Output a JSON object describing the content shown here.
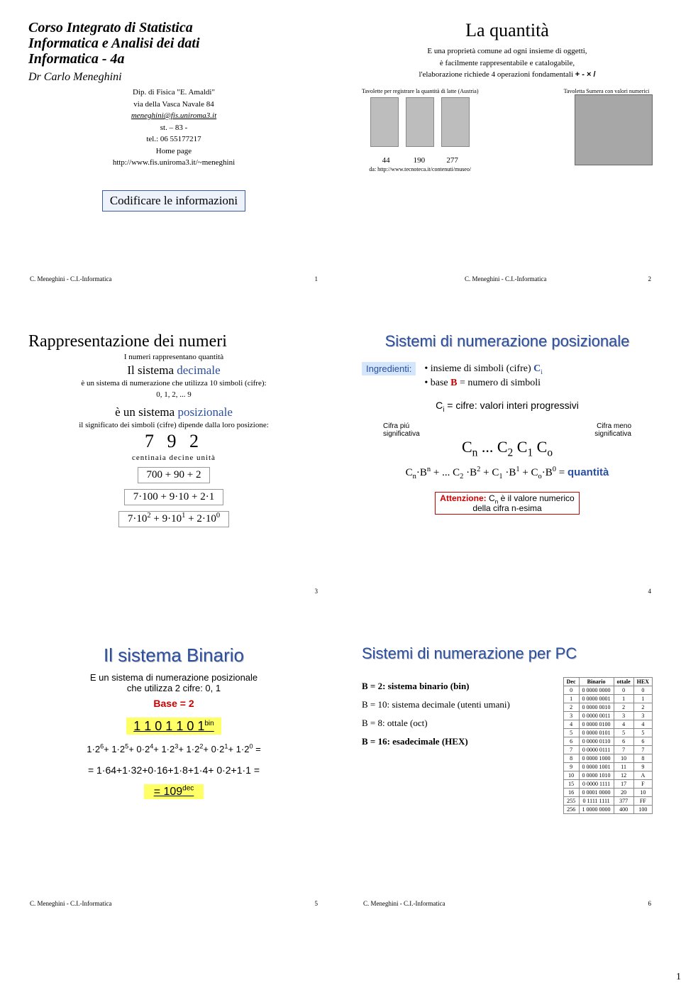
{
  "page_number": "1",
  "slide1": {
    "title_l1": "Corso Integrato di Statistica",
    "title_l2": "Informatica e Analisi dei dati",
    "title_l3": "Informatica - 4a",
    "author": "Dr Carlo Meneghini",
    "dept": "Dip. di Fisica \"E. Amaldi\"",
    "addr": "via della Vasca Navale 84",
    "email": "meneghini@fis.uniroma3.it",
    "room": "st. – 83 -",
    "tel": "tel.: 06 55177217",
    "home_label": "Home page",
    "home_url": "http://www.fis.uniroma3.it/~meneghini",
    "box": "Codificare le informazioni",
    "footer": "C. Meneghini - C.I.-Informatica",
    "num": "1"
  },
  "slide2": {
    "title": "La quantità",
    "line1": "E una proprietà comune ad ogni insieme di oggetti,",
    "line2": "è facilmente rappresentabile e catalogabile,",
    "line3_a": "l'elaborazione richiede 4 operazioni fondamentali ",
    "line3_ops": "+ - × /",
    "cap_left": "Tavolette per registrare la quantità di latte (Austria)",
    "cap_right": "Tavoletta Sumera con valori numerici",
    "nums": "44            190           277",
    "src": "da: http://www.tecnoteca.it/contenuti/museo/",
    "footer": "C. Meneghini - C.I.-Informatica",
    "num": "2"
  },
  "slide3": {
    "title": "Rappresentazione dei numeri",
    "sub1": "I numeri rappresentano quantità",
    "sub2a": "Il sistema ",
    "sub2b": "decimale",
    "line1": "è un sistema di numerazione che utilizza 10 simboli (cifre):",
    "line2": "0, 1, 2, ... 9",
    "sub3a": "è un sistema ",
    "sub3b": "posizionale",
    "line3": "il significato dei simboli (cifre) dipende dalla loro posizione:",
    "digits": "7 9 2",
    "labels": "centinaia  decine  unità",
    "eq1": "700 + 90 + 2",
    "eq2": "7·100 + 9·10 + 2·1",
    "eq3_html": "7·10<sup>2</sup> + 9·10<sup>1</sup> + 2·10<sup>0</sup>",
    "num": "3"
  },
  "slide4": {
    "title": "Sistemi di numerazione posizionale",
    "ingred_label": "Ingredienti:",
    "ing1": "• insieme di simboli  (cifre)  ",
    "ing1_c": "C",
    "ing1_i": "i",
    "ing2a": "• base ",
    "ing2b": "B",
    "ing2c": " = numero di simboli",
    "ci_line": "C<sub>i</sub> = cifre: valori interi progressivi",
    "lbl_left": "Cifra piú\nsignificativa",
    "lbl_right": "Cifra meno\nsignificativa",
    "cn_line": "C<sub>n</sub> ... C<sub>2</sub> C<sub>1</sub> C<sub>o</sub>",
    "formula_html": "C<sub>n</sub>·B<sup>n</sup> + ... C<sub>2</sub> ·B<sup>2</sup> + C<sub>1</sub> ·B<sup>1</sup> + C<sub>o</sub>·B<sup>0</sup>  = ",
    "formula_eq": "quantità",
    "warn_a": "Attenzione:",
    "warn_b": " C<sub>n</sub> è il valore numerico\ndella cifra n-esima",
    "num": "4"
  },
  "slide5": {
    "title": "Il sistema Binario",
    "line1": "E un sistema di numerazione posizionale",
    "line2": "che utilizza 2 cifre: 0, 1",
    "base": "Base = 2",
    "bin": "1 1 0 1 1 0 1",
    "bin_sup": "bin",
    "eq1_html": "1·2<sup>6</sup>+ 1·2<sup>5</sup>+ 0·2<sup>4</sup>+ 1·2<sup>3</sup>+ 1·2<sup>2</sup>+ 0·2<sup>1</sup>+ 1·2<sup>0</sup> =",
    "eq2": "= 1·64+1·32+0·16+1·8+1·4+ 0·2+1·1 =",
    "eq3": "= 109",
    "eq3_sup": "dec",
    "footer": "C. Meneghini - C.I.-Informatica",
    "num": "5"
  },
  "slide6": {
    "title": "Sistemi di numerazione per PC",
    "b2": "B = 2:   sistema binario (bin)",
    "b10": "B = 10: sistema decimale (utenti umani)",
    "b8": "B = 8:   ottale (oct)",
    "b16": "B = 16: esadecimale (HEX)",
    "table_head": [
      "Dec",
      "Binario",
      "ottale",
      "HEX"
    ],
    "table_rows": [
      [
        "0",
        "0 0000 0000",
        "0",
        "0"
      ],
      [
        "1",
        "0 0000 0001",
        "1",
        "1"
      ],
      [
        "2",
        "0 0000 0010",
        "2",
        "2"
      ],
      [
        "3",
        "0 0000 0011",
        "3",
        "3"
      ],
      [
        "4",
        "0 0000 0100",
        "4",
        "4"
      ],
      [
        "5",
        "0 0000 0101",
        "5",
        "5"
      ],
      [
        "6",
        "0 0000 0110",
        "6",
        "6"
      ],
      [
        "7",
        "0 0000 0111",
        "7",
        "7"
      ],
      [
        "8",
        "0 0000 1000",
        "10",
        "8"
      ],
      [
        "9",
        "0 0000 1001",
        "11",
        "9"
      ],
      [
        "10",
        "0 0000 1010",
        "12",
        "A"
      ],
      [
        "15",
        "0 0000 1111",
        "17",
        "F"
      ],
      [
        "16",
        "0 0001 0000",
        "20",
        "10"
      ],
      [
        "255",
        "0 1111 1111",
        "377",
        "FF"
      ],
      [
        "256",
        "1 0000 0000",
        "400",
        "100"
      ]
    ],
    "footer": "C. Meneghini - C.I.-Informatica",
    "num": "6"
  }
}
